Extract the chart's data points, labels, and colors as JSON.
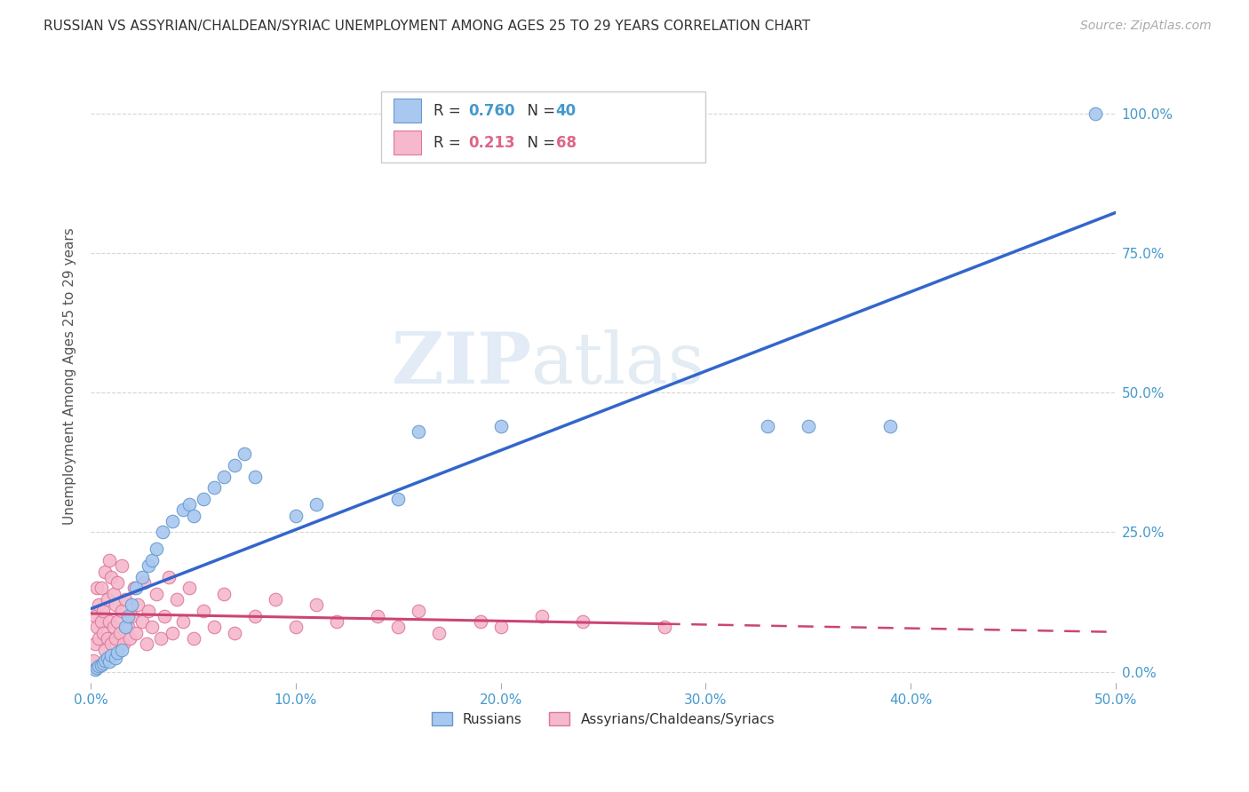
{
  "title": "RUSSIAN VS ASSYRIAN/CHALDEAN/SYRIAC UNEMPLOYMENT AMONG AGES 25 TO 29 YEARS CORRELATION CHART",
  "source": "Source: ZipAtlas.com",
  "ylabel": "Unemployment Among Ages 25 to 29 years",
  "xlim": [
    0.0,
    0.5
  ],
  "ylim": [
    -0.02,
    1.08
  ],
  "xticks": [
    0.0,
    0.1,
    0.2,
    0.3,
    0.4,
    0.5
  ],
  "xticklabels": [
    "0.0%",
    "10.0%",
    "20.0%",
    "30.0%",
    "40.0%",
    "50.0%"
  ],
  "yticks": [
    0.0,
    0.25,
    0.5,
    0.75,
    1.0
  ],
  "yticklabels": [
    "0.0%",
    "25.0%",
    "50.0%",
    "75.0%",
    "100.0%"
  ],
  "russian_color": "#a8c8f0",
  "assyrian_color": "#f5b8cc",
  "russian_edge": "#6699cc",
  "assyrian_edge": "#dd7799",
  "trendline_russian_color": "#3366cc",
  "trendline_assyrian_color": "#cc4477",
  "R_russian": 0.76,
  "N_russian": 40,
  "R_assyrian": 0.213,
  "N_assyrian": 68,
  "legend_label_russian": "Russians",
  "legend_label_assyrian": "Assyrians/Chaldeans/Syriacs",
  "watermark_zip": "ZIP",
  "watermark_atlas": "atlas",
  "background_color": "#ffffff",
  "grid_color": "#cccccc",
  "russians_x": [
    0.002,
    0.003,
    0.004,
    0.005,
    0.006,
    0.007,
    0.008,
    0.009,
    0.01,
    0.012,
    0.013,
    0.015,
    0.017,
    0.018,
    0.02,
    0.022,
    0.025,
    0.028,
    0.03,
    0.032,
    0.035,
    0.04,
    0.045,
    0.048,
    0.05,
    0.055,
    0.06,
    0.065,
    0.07,
    0.075,
    0.08,
    0.1,
    0.11,
    0.15,
    0.16,
    0.2,
    0.33,
    0.35,
    0.39,
    0.49
  ],
  "russians_y": [
    0.005,
    0.008,
    0.01,
    0.012,
    0.015,
    0.02,
    0.025,
    0.018,
    0.03,
    0.025,
    0.035,
    0.04,
    0.08,
    0.1,
    0.12,
    0.15,
    0.17,
    0.19,
    0.2,
    0.22,
    0.25,
    0.27,
    0.29,
    0.3,
    0.28,
    0.31,
    0.33,
    0.35,
    0.37,
    0.39,
    0.35,
    0.28,
    0.3,
    0.31,
    0.43,
    0.44,
    0.44,
    0.44,
    0.44,
    1.0
  ],
  "assyrians_x": [
    0.001,
    0.002,
    0.002,
    0.003,
    0.003,
    0.004,
    0.004,
    0.005,
    0.005,
    0.006,
    0.006,
    0.007,
    0.007,
    0.008,
    0.008,
    0.009,
    0.009,
    0.01,
    0.01,
    0.011,
    0.011,
    0.012,
    0.012,
    0.013,
    0.013,
    0.014,
    0.015,
    0.015,
    0.016,
    0.017,
    0.018,
    0.019,
    0.02,
    0.021,
    0.022,
    0.023,
    0.025,
    0.026,
    0.027,
    0.028,
    0.03,
    0.032,
    0.034,
    0.036,
    0.038,
    0.04,
    0.042,
    0.045,
    0.048,
    0.05,
    0.055,
    0.06,
    0.065,
    0.07,
    0.08,
    0.09,
    0.1,
    0.11,
    0.12,
    0.14,
    0.15,
    0.16,
    0.17,
    0.19,
    0.2,
    0.22,
    0.24,
    0.28
  ],
  "assyrians_y": [
    0.02,
    0.05,
    0.1,
    0.08,
    0.15,
    0.06,
    0.12,
    0.09,
    0.15,
    0.07,
    0.11,
    0.04,
    0.18,
    0.06,
    0.13,
    0.09,
    0.2,
    0.05,
    0.17,
    0.08,
    0.14,
    0.06,
    0.12,
    0.09,
    0.16,
    0.07,
    0.11,
    0.19,
    0.05,
    0.13,
    0.08,
    0.06,
    0.1,
    0.15,
    0.07,
    0.12,
    0.09,
    0.16,
    0.05,
    0.11,
    0.08,
    0.14,
    0.06,
    0.1,
    0.17,
    0.07,
    0.13,
    0.09,
    0.15,
    0.06,
    0.11,
    0.08,
    0.14,
    0.07,
    0.1,
    0.13,
    0.08,
    0.12,
    0.09,
    0.1,
    0.08,
    0.11,
    0.07,
    0.09,
    0.08,
    0.1,
    0.09,
    0.08
  ]
}
